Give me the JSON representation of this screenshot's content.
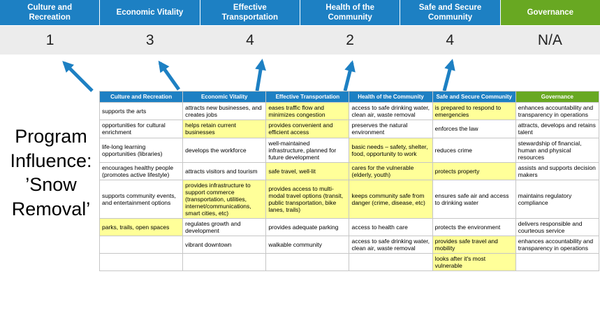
{
  "title": "Program Influence: ’Snow Removal’",
  "colors": {
    "blue": "#1d80c3",
    "green": "#68a822",
    "yellow": "#ffff99",
    "band": "#ececec",
    "border": "#c6c6c6"
  },
  "categories": [
    {
      "label": "Culture and Recreation",
      "score": "1"
    },
    {
      "label": "Economic Vitality",
      "score": "3"
    },
    {
      "label": "Effective Transportation",
      "score": "4"
    },
    {
      "label": "Health of the Community",
      "score": "2"
    },
    {
      "label": "Safe and Secure Community",
      "score": "4"
    },
    {
      "label": "Governance",
      "score": "N/A"
    }
  ],
  "matrix": {
    "headers": [
      {
        "label": "Culture and Recreation",
        "color": "blue"
      },
      {
        "label": "Economic Vitality",
        "color": "blue"
      },
      {
        "label": "Effective Transportation",
        "color": "blue"
      },
      {
        "label": "Health of the Community",
        "color": "blue"
      },
      {
        "label": "Safe and Secure Community",
        "color": "blue"
      },
      {
        "label": "Governance",
        "color": "green"
      }
    ],
    "rows": [
      {
        "cells": [
          {
            "text": "supports the arts",
            "highlight": false
          },
          {
            "text": "attracts new businesses, and creates jobs",
            "highlight": false
          },
          {
            "text": "eases traffic flow and minimizes congestion",
            "highlight": true
          },
          {
            "text": "access to safe drinking water, clean air, waste removal",
            "highlight": false
          },
          {
            "text": "is prepared to respond to emergencies",
            "highlight": true
          },
          {
            "text": "enhances accountability and transparency in operations",
            "highlight": false
          }
        ]
      },
      {
        "cells": [
          {
            "text": "opportunities for cultural enrichment",
            "highlight": false
          },
          {
            "text": "helps retain current businesses",
            "highlight": true
          },
          {
            "text": "provides convenient and efficient access",
            "highlight": true
          },
          {
            "text": "preserves the natural environment",
            "highlight": false
          },
          {
            "text": "enforces the law",
            "highlight": false
          },
          {
            "text": "attracts, develops and retains talent",
            "highlight": false
          }
        ]
      },
      {
        "cells": [
          {
            "text": "life-long learning opportunities (libraries)",
            "highlight": false
          },
          {
            "text": "develops the workforce",
            "highlight": false
          },
          {
            "text": "well-maintained infrastructure, planned for future development",
            "highlight": false
          },
          {
            "text": "basic needs – safety, shelter, food, opportunity to work",
            "highlight": true
          },
          {
            "text": "reduces crime",
            "highlight": false
          },
          {
            "text": "stewardship of financial, human and physical resources",
            "highlight": false
          }
        ]
      },
      {
        "cells": [
          {
            "text": "encourages healthy people (promotes active lifestyle)",
            "highlight": false
          },
          {
            "text": "attracts visitors and tourism",
            "highlight": false
          },
          {
            "text": "safe travel, well-lit",
            "highlight": true
          },
          {
            "text": "cares for the vulnerable (elderly, youth)",
            "highlight": true
          },
          {
            "text": "protects property",
            "highlight": true
          },
          {
            "text": "assists and supports decision makers",
            "highlight": false
          }
        ]
      },
      {
        "cells": [
          {
            "text": "supports community events, and entertainment options",
            "highlight": false
          },
          {
            "text": "provides infrastructure to support commerce (transportation, utilities, internet/communications, smart cities, etc)",
            "highlight": true
          },
          {
            "text": "provides access to multi-modal travel options (transit, public transportation, bike lanes, trails)",
            "highlight": true
          },
          {
            "text": "keeps community safe from danger (crime, disease, etc)",
            "highlight": true
          },
          {
            "text": "ensures safe air and access to drinking water",
            "highlight": false
          },
          {
            "text": "maintains regulatory compliance",
            "highlight": false
          }
        ]
      },
      {
        "cells": [
          {
            "text": "parks, trails, open spaces",
            "highlight": true
          },
          {
            "text": "regulates growth and development",
            "highlight": false
          },
          {
            "text": "provides adequate parking",
            "highlight": false
          },
          {
            "text": "access to health care",
            "highlight": false
          },
          {
            "text": "protects the environment",
            "highlight": false
          },
          {
            "text": "delivers responsible and courteous service",
            "highlight": false
          }
        ]
      },
      {
        "cells": [
          {
            "text": "",
            "highlight": false
          },
          {
            "text": "vibrant downtown",
            "highlight": false
          },
          {
            "text": "walkable community",
            "highlight": false
          },
          {
            "text": "access to safe drinking water, clean air, waste removal",
            "highlight": false
          },
          {
            "text": "provides safe travel and mobility",
            "highlight": true
          },
          {
            "text": "enhances accountability and transparency in operations",
            "highlight": false
          }
        ]
      },
      {
        "cells": [
          {
            "text": "",
            "highlight": false
          },
          {
            "text": "",
            "highlight": false
          },
          {
            "text": "",
            "highlight": false
          },
          {
            "text": "",
            "highlight": false
          },
          {
            "text": "looks after it's most vulnerable",
            "highlight": true
          },
          {
            "text": "",
            "highlight": false
          }
        ]
      }
    ]
  }
}
